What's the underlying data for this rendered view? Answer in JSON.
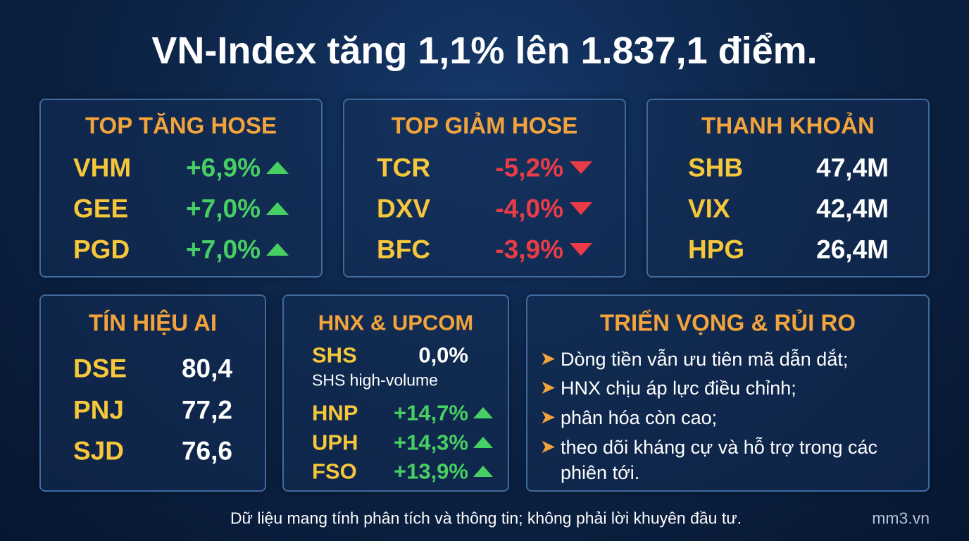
{
  "title": "VN-Index tăng 1,1% lên 1.837,1 điểm.",
  "top_gainers": {
    "title": "TOP TĂNG HOSE",
    "rows": [
      [
        "VHM",
        "+6,9%"
      ],
      [
        "GEE",
        "+7,0%"
      ],
      [
        "PGD",
        "+7,0%"
      ]
    ]
  },
  "top_losers": {
    "title": "TOP GIẢM HOSE",
    "rows": [
      [
        "TCR",
        "-5,2%"
      ],
      [
        "DXV",
        "-4,0%"
      ],
      [
        "BFC",
        "-3,9%"
      ]
    ]
  },
  "liquidity": {
    "title": "THANH KHOẢN",
    "rows": [
      [
        "SHB",
        "47,4M"
      ],
      [
        "VIX",
        "42,4M"
      ],
      [
        "HPG",
        "26,4M"
      ]
    ]
  },
  "ai_signals": {
    "title": "TÍN HIỆU AI",
    "rows": [
      [
        "DSE",
        "80,4"
      ],
      [
        "PNJ",
        "77,2"
      ],
      [
        "SJD",
        "76,6"
      ]
    ]
  },
  "hnx_upcom": {
    "title": "HNX & UPCOM",
    "highlight": [
      "SHS",
      "0,0%"
    ],
    "note": "SHS high-volume",
    "rows": [
      [
        "HNP",
        "+14,7%"
      ],
      [
        "UPH",
        "+14,3%"
      ],
      [
        "FSO",
        "+13,9%"
      ]
    ]
  },
  "outlook": {
    "title": "TRIỂN VỌNG & RỦI RO",
    "items": [
      "Dòng tiền vẫn ưu tiên mã dẫn dắt;",
      "HNX chịu áp lực điều chỉnh;",
      "phân hóa còn cao;",
      "theo dõi kháng cự và hỗ trợ trong các phiên tới."
    ]
  },
  "footer": {
    "disclaimer": "Dữ liệu mang tính phân tích và thông tin; không phải lời khuyên đầu tư.",
    "site": "mm3.vn"
  }
}
